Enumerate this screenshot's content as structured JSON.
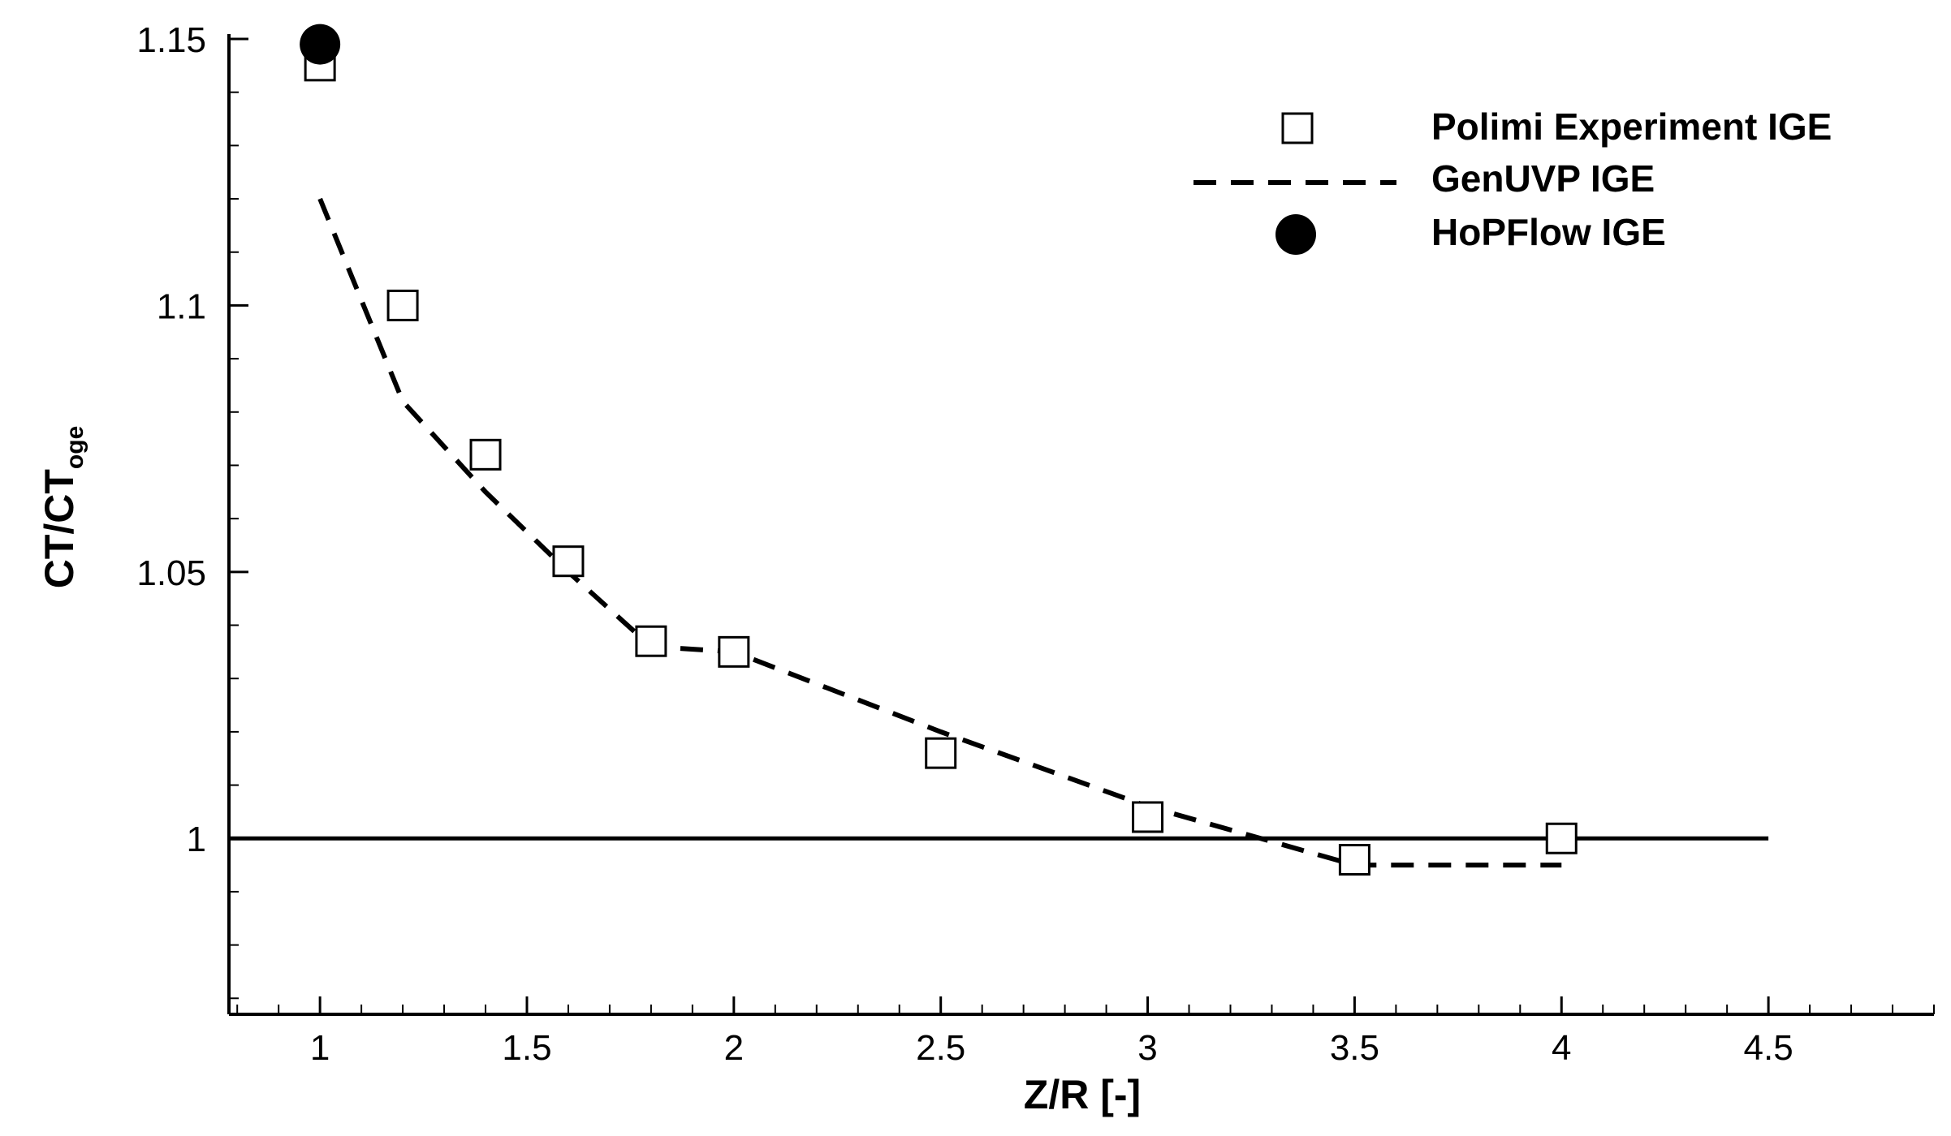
{
  "chart_data": {
    "type": "scatter",
    "title": "",
    "xlabel": "Z/R [-]",
    "ylabel": {
      "main": "CT/CT",
      "sub": "oge"
    },
    "xlim": [
      0.78,
      4.9
    ],
    "ylim": [
      0.967,
      1.15
    ],
    "xticks": [
      1,
      1.5,
      2,
      2.5,
      3,
      3.5,
      4,
      4.5
    ],
    "xtick_labels": [
      "1",
      "1.5",
      "2",
      "2.5",
      "3",
      "3.5",
      "4",
      "4.5"
    ],
    "yticks": [
      1,
      1.05,
      1.1,
      1.15
    ],
    "ytick_labels": [
      "1",
      "1.05",
      "1.1",
      "1.15"
    ],
    "reference_line": {
      "y": 1.0,
      "x_range": [
        0.78,
        4.5
      ]
    },
    "legend_position": "top-right",
    "series": [
      {
        "name": "Polimi Experiment IGE",
        "marker": "open-square",
        "x": [
          1.0,
          1.2,
          1.4,
          1.6,
          1.8,
          2.0,
          2.5,
          3.0,
          3.5,
          4.0
        ],
        "y": [
          1.145,
          1.1,
          1.072,
          1.052,
          1.037,
          1.035,
          1.016,
          1.004,
          0.996,
          1.0
        ]
      },
      {
        "name": "GenUVP IGE",
        "line": "dashed",
        "x": [
          1.0,
          1.2,
          1.4,
          1.6,
          1.8,
          2.0,
          2.5,
          3.0,
          3.5,
          4.0
        ],
        "y": [
          1.12,
          1.082,
          1.065,
          1.05,
          1.036,
          1.035,
          1.02,
          1.006,
          0.995,
          0.995
        ]
      },
      {
        "name": "HoPFlow IGE",
        "marker": "filled-circle",
        "x": [
          1.0
        ],
        "y": [
          1.149
        ]
      }
    ]
  }
}
